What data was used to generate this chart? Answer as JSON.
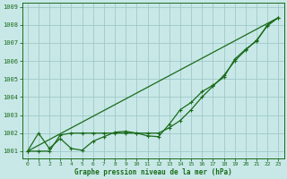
{
  "bg_color": "#c8e8e8",
  "grid_color": "#a0c8c8",
  "line_color": "#1a6b1a",
  "xlabel": "Graphe pression niveau de la mer (hPa)",
  "ylim": [
    1000.6,
    1009.2
  ],
  "xlim": [
    -0.5,
    23.5
  ],
  "yticks": [
    1001,
    1002,
    1003,
    1004,
    1005,
    1006,
    1007,
    1008,
    1009
  ],
  "xticks": [
    0,
    1,
    2,
    3,
    4,
    5,
    6,
    7,
    8,
    9,
    10,
    11,
    12,
    13,
    14,
    15,
    16,
    17,
    18,
    19,
    20,
    21,
    22,
    23
  ],
  "series1": [
    1001.0,
    1002.0,
    1001.15,
    1001.7,
    1001.15,
    1001.05,
    1001.55,
    1001.8,
    1002.05,
    1002.1,
    1002.0,
    1001.85,
    1001.8,
    1002.5,
    1003.3,
    1003.7,
    1004.3,
    1004.65,
    1005.1,
    1006.1,
    1006.65,
    1007.1,
    1008.0,
    1008.4
  ],
  "series2": [
    1001.0,
    1001.0,
    1001.0,
    1001.9,
    1002.0,
    1002.0,
    1002.0,
    1002.0,
    1002.0,
    1002.0,
    1002.0,
    1002.0,
    1002.0,
    1002.3,
    1002.7,
    1003.3,
    1004.0,
    1004.6,
    1005.2,
    1006.0,
    1006.6,
    1007.15,
    1007.95,
    1008.4
  ],
  "series3_x": [
    0,
    23
  ],
  "series3_y": [
    1001.0,
    1008.4
  ]
}
